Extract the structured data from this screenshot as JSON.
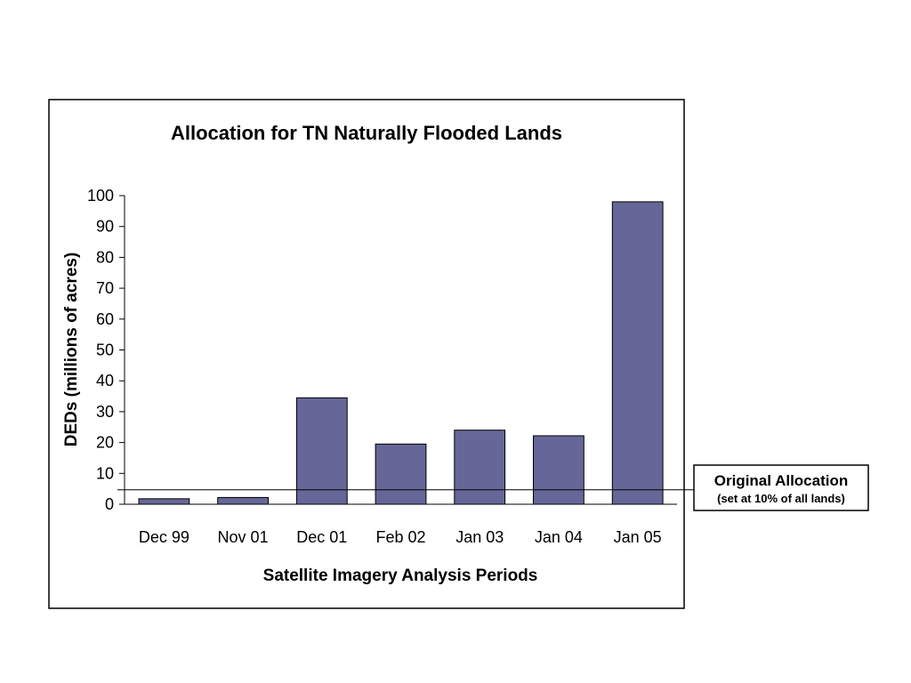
{
  "chart_data": {
    "type": "bar",
    "title": "Allocation for TN Naturally Flooded Lands",
    "xlabel": "Satellite Imagery Analysis Periods",
    "ylabel": "DEDs (millions of acres)",
    "categories": [
      "Dec 99",
      "Nov 01",
      "Dec 01",
      "Feb 02",
      "Jan 03",
      "Jan 04",
      "Jan 05"
    ],
    "values": [
      1.8,
      2.2,
      34.5,
      19.5,
      24,
      22.2,
      98
    ],
    "ylim": [
      0,
      100
    ],
    "yticks": [
      "0",
      "10",
      "20",
      "30",
      "40",
      "50",
      "60",
      "70",
      "80",
      "90",
      "100"
    ],
    "bar_color": "#666699",
    "reference_line": {
      "value": 4.7,
      "label": "Original Allocation",
      "sublabel": "(set at 10% of all lands)"
    },
    "grid": false,
    "legend": "none"
  }
}
